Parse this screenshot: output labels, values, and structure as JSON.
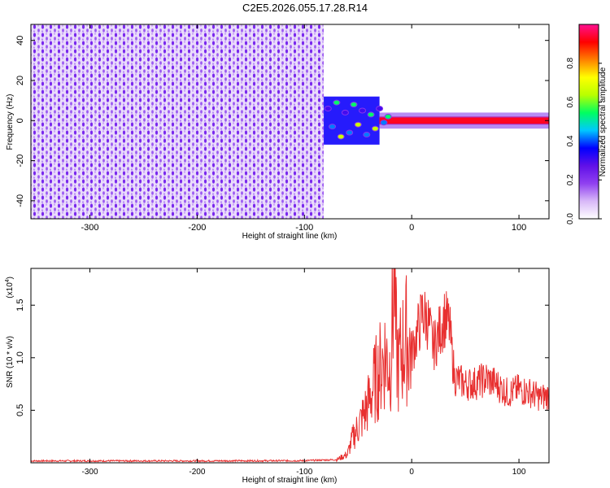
{
  "title": "C2E5.2026.055.17.28.R14",
  "colors": {
    "snr_line": "#e83030",
    "axis": "#000000",
    "colormap": [
      "#ffffff",
      "#d8b8f8",
      "#9040f0",
      "#6010e8",
      "#0000ff",
      "#00c8ff",
      "#00ff60",
      "#b8ff00",
      "#ffff00",
      "#ff8000",
      "#ff0000",
      "#ff1090"
    ]
  },
  "chart_data": [
    {
      "type": "heatmap",
      "xlabel": "Height of straight line (km)",
      "ylabel": "Frequency (Hz)",
      "xlim": [
        -355,
        128
      ],
      "ylim": [
        -49,
        48
      ],
      "xticks": [
        -300,
        -200,
        -100,
        0,
        100
      ],
      "xtick_labels": [
        "-300",
        "-200",
        "-100",
        "0",
        "100"
      ],
      "yticks": [
        -40,
        -20,
        0,
        20,
        40
      ],
      "ytick_labels": [
        "-40",
        "-20",
        "0",
        "20",
        "40"
      ],
      "colorbar": {
        "label": "Normalized spectral amplitude",
        "range": [
          0,
          1
        ],
        "ticks": [
          0.0,
          0.2,
          0.4,
          0.6,
          0.8
        ],
        "tick_labels": [
          "0.0",
          "0.2",
          "0.4",
          "0.6",
          "0.8"
        ]
      },
      "regions": [
        {
          "x_range": [
            -355,
            -82
          ],
          "freq_range": [
            -49,
            48
          ],
          "amplitude": 0.08
        },
        {
          "x_range": [
            -82,
            -30
          ],
          "freq_range": [
            -12,
            12
          ],
          "amplitude": 0.35
        },
        {
          "x_range": [
            -30,
            128
          ],
          "freq_range": [
            -2,
            2
          ],
          "amplitude": 0.95
        }
      ]
    },
    {
      "type": "line",
      "xlabel": "Height of straight line (km)",
      "ylabel": "SNR (10 * v/v)",
      "scale_label": "(x10",
      "scale_exponent": "4",
      "scale_close": ")",
      "xlim": [
        -355,
        128
      ],
      "ylim": [
        0,
        18500
      ],
      "xticks": [
        -300,
        -200,
        -100,
        0,
        100
      ],
      "xtick_labels": [
        "-300",
        "-200",
        "-100",
        "0",
        "100"
      ],
      "yticks": [
        5000,
        10000,
        15000
      ],
      "ytick_labels": [
        "0.5",
        "1.0",
        "1.5"
      ],
      "series": [
        {
          "x": [
            -355,
            -300,
            -200,
            -100,
            -70,
            -60,
            -55,
            -50,
            -45,
            -40,
            -35,
            -30,
            -25,
            -20,
            -16,
            -15,
            -12,
            -10,
            -5,
            0,
            5,
            10,
            15,
            20,
            25,
            30,
            35,
            40,
            50,
            60,
            70,
            80,
            90,
            100,
            110,
            120,
            128
          ],
          "values": [
            180,
            180,
            180,
            200,
            300,
            800,
            2400,
            3400,
            4500,
            5800,
            7500,
            8800,
            10300,
            9200,
            18500,
            12000,
            9000,
            10500,
            11800,
            10500,
            12300,
            14200,
            13600,
            11000,
            12200,
            13800,
            13100,
            8100,
            7500,
            7600,
            8000,
            7400,
            6600,
            7000,
            6700,
            6200,
            6400
          ]
        }
      ]
    }
  ]
}
